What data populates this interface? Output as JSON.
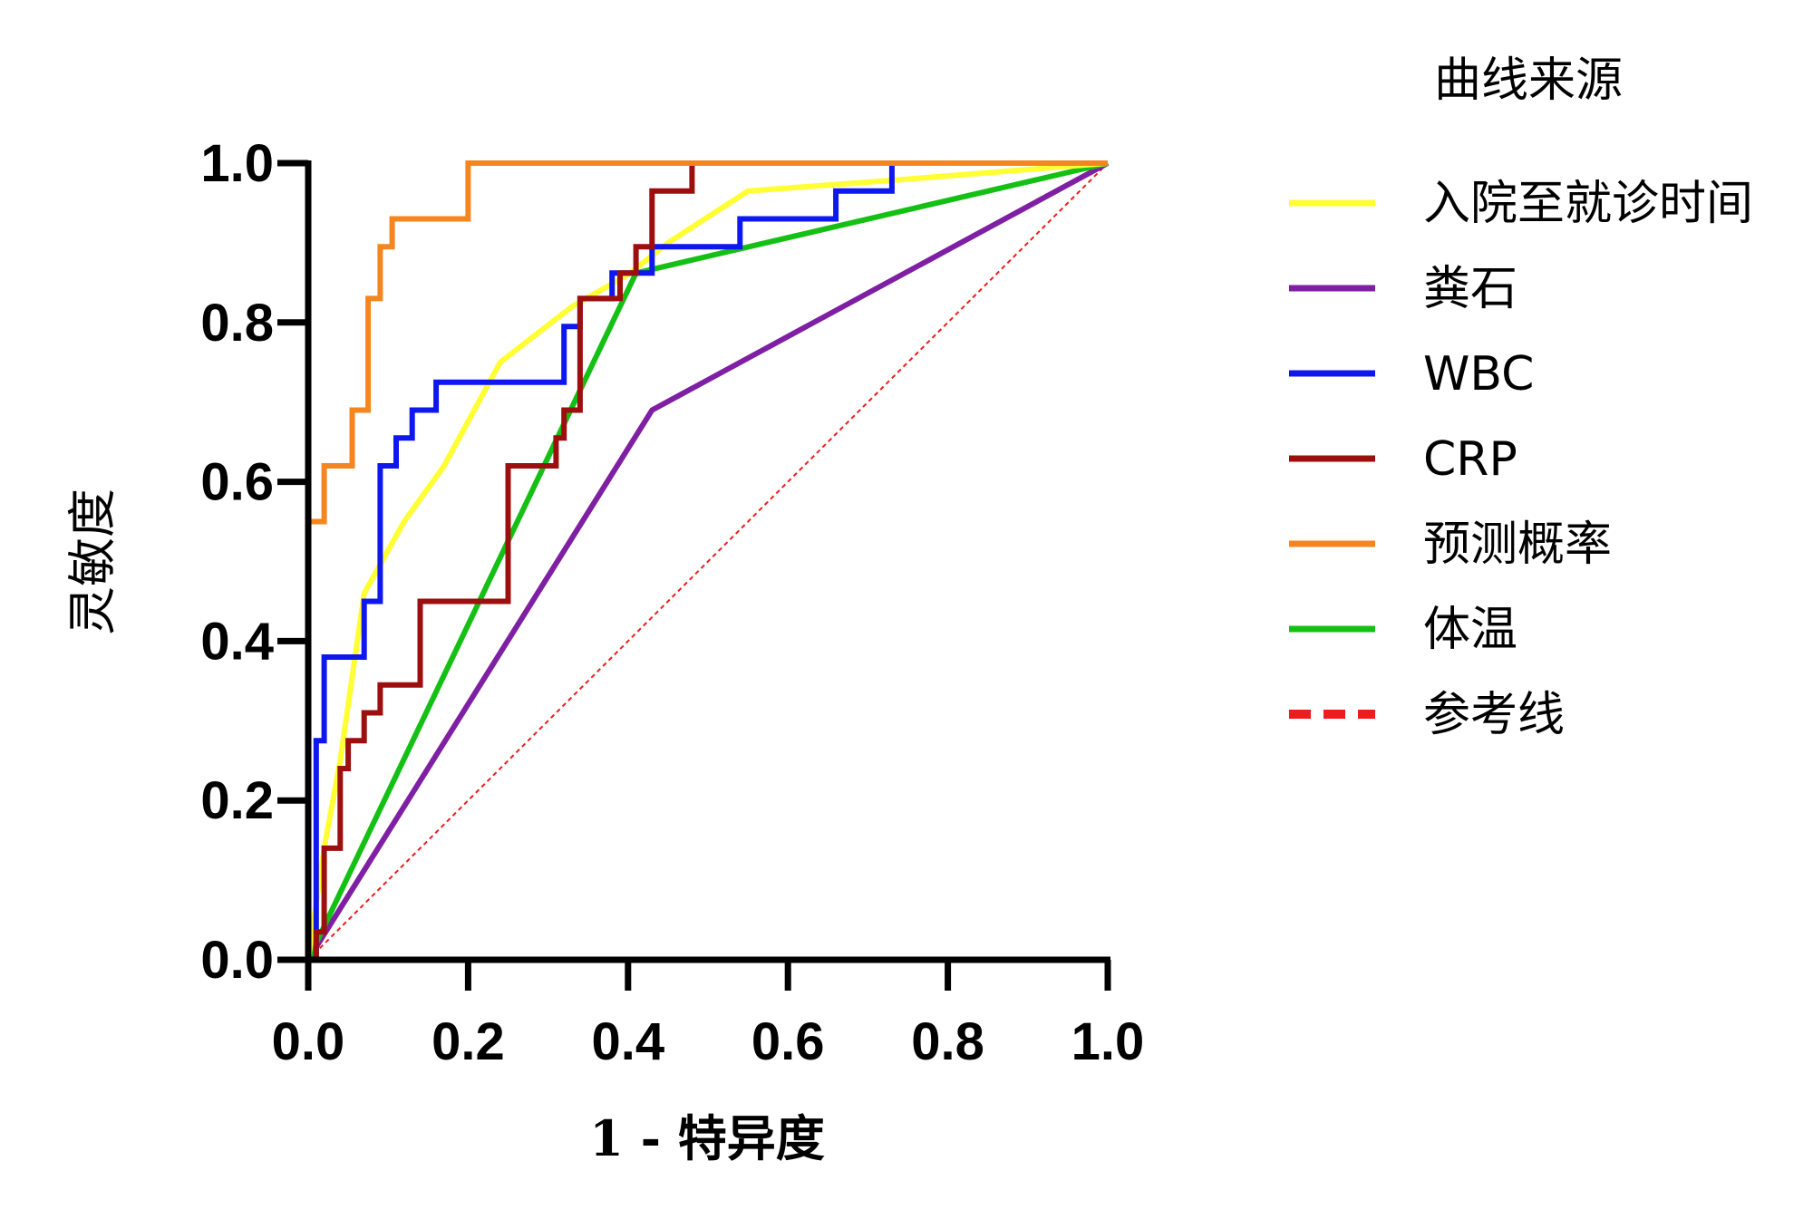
{
  "chart_data": {
    "type": "line",
    "title": "",
    "xlabel": "1 - 特异度",
    "ylabel": "灵敏度",
    "xlim": [
      0,
      1
    ],
    "ylim": [
      0,
      1
    ],
    "xticks": [
      "0.0",
      "0.2",
      "0.4",
      "0.6",
      "0.8",
      "1.0"
    ],
    "yticks": [
      "0.0",
      "0.2",
      "0.4",
      "0.6",
      "0.8",
      "1.0"
    ],
    "legend_title": "曲线来源",
    "legend_position": "right",
    "series": [
      {
        "name": "入院至就诊时间",
        "color": "#ffff33",
        "points": [
          [
            0,
            0
          ],
          [
            0.02,
            0.14
          ],
          [
            0.04,
            0.25
          ],
          [
            0.07,
            0.46
          ],
          [
            0.12,
            0.55
          ],
          [
            0.17,
            0.62
          ],
          [
            0.24,
            0.75
          ],
          [
            0.33,
            0.82
          ],
          [
            0.4,
            0.86
          ],
          [
            0.45,
            0.9
          ],
          [
            0.55,
            0.965
          ],
          [
            0.75,
            0.98
          ],
          [
            1,
            1
          ]
        ]
      },
      {
        "name": "粪石",
        "color": "#7f1fa3",
        "points": [
          [
            0,
            0
          ],
          [
            0.43,
            0.69
          ],
          [
            1,
            1
          ]
        ]
      },
      {
        "name": "WBC",
        "color": "#0d17ee",
        "points": [
          [
            0,
            0
          ],
          [
            0.01,
            0
          ],
          [
            0.01,
            0.275
          ],
          [
            0.02,
            0.275
          ],
          [
            0.02,
            0.38
          ],
          [
            0.07,
            0.38
          ],
          [
            0.07,
            0.45
          ],
          [
            0.09,
            0.45
          ],
          [
            0.09,
            0.62
          ],
          [
            0.11,
            0.62
          ],
          [
            0.11,
            0.655
          ],
          [
            0.13,
            0.655
          ],
          [
            0.13,
            0.69
          ],
          [
            0.16,
            0.69
          ],
          [
            0.16,
            0.725
          ],
          [
            0.32,
            0.725
          ],
          [
            0.32,
            0.795
          ],
          [
            0.34,
            0.795
          ],
          [
            0.34,
            0.83
          ],
          [
            0.38,
            0.83
          ],
          [
            0.38,
            0.862
          ],
          [
            0.43,
            0.862
          ],
          [
            0.43,
            0.895
          ],
          [
            0.54,
            0.895
          ],
          [
            0.54,
            0.93
          ],
          [
            0.66,
            0.93
          ],
          [
            0.66,
            0.965
          ],
          [
            0.73,
            0.965
          ],
          [
            0.73,
            1
          ],
          [
            1,
            1
          ]
        ]
      },
      {
        "name": "CRP",
        "color": "#9d0e0e",
        "points": [
          [
            0,
            0
          ],
          [
            0.01,
            0
          ],
          [
            0.01,
            0.035
          ],
          [
            0.02,
            0.035
          ],
          [
            0.02,
            0.14
          ],
          [
            0.04,
            0.14
          ],
          [
            0.04,
            0.24
          ],
          [
            0.05,
            0.24
          ],
          [
            0.05,
            0.275
          ],
          [
            0.07,
            0.275
          ],
          [
            0.07,
            0.31
          ],
          [
            0.09,
            0.31
          ],
          [
            0.09,
            0.345
          ],
          [
            0.14,
            0.345
          ],
          [
            0.14,
            0.45
          ],
          [
            0.25,
            0.45
          ],
          [
            0.25,
            0.62
          ],
          [
            0.31,
            0.62
          ],
          [
            0.31,
            0.655
          ],
          [
            0.32,
            0.655
          ],
          [
            0.32,
            0.69
          ],
          [
            0.34,
            0.69
          ],
          [
            0.34,
            0.83
          ],
          [
            0.39,
            0.83
          ],
          [
            0.39,
            0.862
          ],
          [
            0.41,
            0.862
          ],
          [
            0.41,
            0.895
          ],
          [
            0.43,
            0.895
          ],
          [
            0.43,
            0.965
          ],
          [
            0.48,
            0.965
          ],
          [
            0.48,
            1
          ],
          [
            1,
            1
          ]
        ]
      },
      {
        "name": "预测概率",
        "color": "#f5861f",
        "points": [
          [
            0,
            0
          ],
          [
            0,
            0.55
          ],
          [
            0.02,
            0.55
          ],
          [
            0.02,
            0.62
          ],
          [
            0.055,
            0.62
          ],
          [
            0.055,
            0.69
          ],
          [
            0.075,
            0.69
          ],
          [
            0.075,
            0.83
          ],
          [
            0.09,
            0.83
          ],
          [
            0.09,
            0.895
          ],
          [
            0.105,
            0.895
          ],
          [
            0.105,
            0.93
          ],
          [
            0.2,
            0.93
          ],
          [
            0.2,
            1
          ],
          [
            1,
            1
          ]
        ]
      },
      {
        "name": "体温",
        "color": "#15c015",
        "points": [
          [
            0,
            0
          ],
          [
            0.41,
            0.862
          ],
          [
            1,
            1
          ]
        ]
      },
      {
        "name": "参考线",
        "color": "#ee1c1c",
        "dashed": true,
        "points": [
          [
            0,
            0
          ],
          [
            1,
            1
          ]
        ]
      }
    ]
  }
}
